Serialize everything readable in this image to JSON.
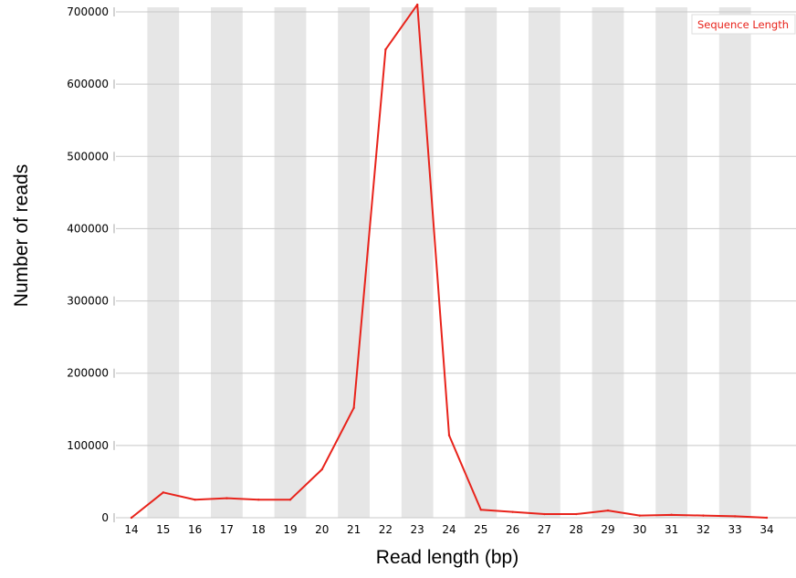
{
  "chart_data": {
    "type": "line",
    "xlabel": "Read length (bp)",
    "ylabel": "Number of reads",
    "x": [
      14,
      15,
      16,
      17,
      18,
      19,
      20,
      21,
      22,
      23,
      24,
      25,
      26,
      27,
      28,
      29,
      30,
      31,
      32,
      33,
      34
    ],
    "x_tick_labels": [
      "14",
      "15",
      "16",
      "17",
      "18",
      "19",
      "20",
      "21",
      "22",
      "23",
      "24",
      "25",
      "26",
      "27",
      "28",
      "29",
      "30",
      "31",
      "32",
      "33",
      "34"
    ],
    "ylim": [
      0,
      700000
    ],
    "y_ticks": [
      0,
      100000,
      200000,
      300000,
      400000,
      500000,
      600000,
      700000
    ],
    "y_tick_labels": [
      "0",
      "100000",
      "200000",
      "300000",
      "400000",
      "500000",
      "600000",
      "700000"
    ],
    "grid": true,
    "alternating_column_shading": true,
    "legend_position": "top-right",
    "series": [
      {
        "name": "Sequence Length",
        "color": "#e8231b",
        "values": [
          0,
          35000,
          25000,
          27000,
          25000,
          25000,
          67000,
          152000,
          648000,
          710000,
          114000,
          11000,
          8000,
          5000,
          5000,
          10000,
          3000,
          4000,
          3000,
          2000,
          0
        ]
      }
    ]
  }
}
